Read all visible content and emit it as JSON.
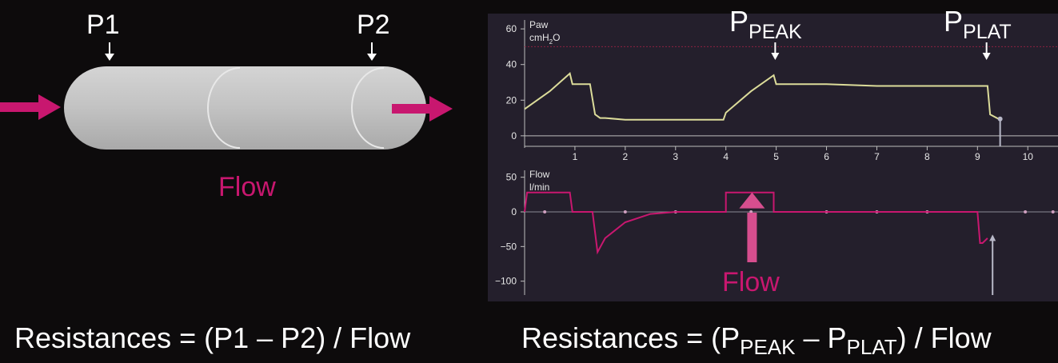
{
  "left": {
    "p1_label": "P1",
    "p2_label": "P2",
    "flow_label": "Flow",
    "formula": {
      "prefix": "Resistances = (P1 – P2) / Flow"
    }
  },
  "right": {
    "ppeak": {
      "main": "P",
      "sub": "PEAK"
    },
    "pplat": {
      "main": "P",
      "sub": "PLAT"
    },
    "flow_label": "Flow",
    "formula": {
      "prefix": "Resistances = (P",
      "sub1": "PEAK",
      "mid": " – P",
      "sub2": "PLAT",
      "suffix": ") / Flow"
    }
  },
  "colors": {
    "pink": "#c8176f",
    "pressure_trace": "#dcdc9a",
    "panel_bg": "#241f2c",
    "page_bg": "#0d0b0c"
  },
  "chart_data": [
    {
      "type": "line",
      "title": "",
      "label_line1": "Paw",
      "label_line2_pre": "cmH",
      "label_line2_sub": "2",
      "label_line2_post": "O",
      "xticks": [
        "1",
        "2",
        "3",
        "4",
        "5",
        "6",
        "7",
        "8",
        "9",
        "10"
      ],
      "yticks": [
        "60",
        "40",
        "20",
        "0"
      ],
      "xlim": [
        0,
        10.6
      ],
      "ylim": [
        -5,
        65
      ],
      "reference_line": 50,
      "series": [
        {
          "x": [
            0,
            0.5,
            0.9,
            0.95,
            1.3,
            1.4,
            1.5,
            1.6,
            2,
            3,
            3.95,
            4.0,
            4.5,
            4.95,
            5.0,
            6,
            7,
            8,
            9,
            9.2,
            9.25,
            9.45
          ],
          "y": [
            15,
            25,
            35,
            29,
            29,
            12,
            10,
            10,
            9,
            9,
            9,
            13,
            25,
            34,
            29,
            29,
            28,
            28,
            28,
            28,
            12,
            9
          ]
        }
      ]
    },
    {
      "type": "line",
      "title": "",
      "label_line1": "Flow",
      "label_line2": "l/min",
      "xlim": [
        0,
        10.6
      ],
      "ylim": [
        -120,
        60
      ],
      "yticks": [
        "50",
        "0",
        "−50",
        "−100"
      ],
      "series": [
        {
          "x": [
            0,
            0.05,
            0.9,
            0.95,
            1.35,
            1.45,
            1.6,
            2,
            2.5,
            3,
            3.5,
            4.0,
            4.0,
            4.95,
            4.95,
            6,
            7,
            8,
            9,
            9.05,
            9.1,
            9.2
          ],
          "y": [
            0,
            28,
            28,
            0,
            0,
            -58,
            -38,
            -15,
            -3,
            0,
            0,
            0,
            28,
            28,
            0,
            0,
            0,
            0,
            0,
            -45,
            -45,
            -38
          ]
        }
      ]
    }
  ]
}
